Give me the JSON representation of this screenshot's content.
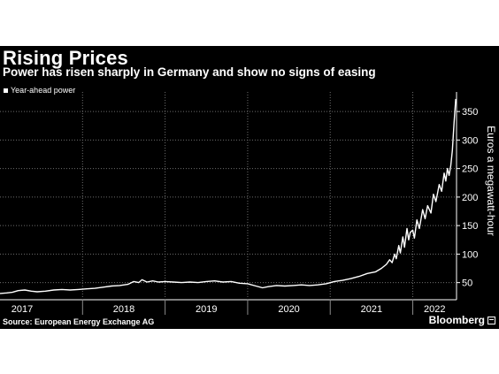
{
  "header": {
    "title": "Rising Prices",
    "subtitle": "Power has risen sharply in Germany and show no signs of easing"
  },
  "footer": {
    "source": "Source: European Energy Exchange AG",
    "brand": "Bloomberg"
  },
  "colors": {
    "background": "#000000",
    "line": "#ffffff",
    "grid": "#6e6e6e"
  },
  "chart_data": {
    "type": "line",
    "title": "Rising Prices",
    "subtitle": "Power has risen sharply in Germany and show no signs of easing",
    "xlabel": "",
    "ylabel": "Euros a megawatt-hour",
    "xlim": [
      2017.0,
      2022.53
    ],
    "ylim": [
      20,
      375
    ],
    "y_ticks": [
      50,
      100,
      150,
      200,
      250,
      300,
      350
    ],
    "x_tick_labels": [
      "2017",
      "2018",
      "2019",
      "2020",
      "2021",
      "2022"
    ],
    "x_ticks": [
      2017,
      2018,
      2019,
      2020,
      2021,
      2022
    ],
    "grid": "dotted-both",
    "legend_position": "top-left",
    "series": [
      {
        "name": "Year-ahead power",
        "points": [
          [
            2017.0,
            31
          ],
          [
            2017.08,
            32
          ],
          [
            2017.15,
            33
          ],
          [
            2017.22,
            36
          ],
          [
            2017.3,
            37
          ],
          [
            2017.38,
            35
          ],
          [
            2017.45,
            34
          ],
          [
            2017.55,
            35
          ],
          [
            2017.65,
            37
          ],
          [
            2017.75,
            38
          ],
          [
            2017.85,
            37
          ],
          [
            2017.95,
            38
          ],
          [
            2018.05,
            39
          ],
          [
            2018.15,
            40
          ],
          [
            2018.25,
            42
          ],
          [
            2018.35,
            44
          ],
          [
            2018.45,
            45
          ],
          [
            2018.55,
            47
          ],
          [
            2018.62,
            52
          ],
          [
            2018.68,
            50
          ],
          [
            2018.72,
            55
          ],
          [
            2018.78,
            51
          ],
          [
            2018.85,
            53
          ],
          [
            2018.92,
            51
          ],
          [
            2019.0,
            52
          ],
          [
            2019.1,
            51
          ],
          [
            2019.2,
            50
          ],
          [
            2019.3,
            51
          ],
          [
            2019.4,
            50
          ],
          [
            2019.5,
            52
          ],
          [
            2019.6,
            53
          ],
          [
            2019.7,
            51
          ],
          [
            2019.8,
            52
          ],
          [
            2019.9,
            49
          ],
          [
            2020.0,
            48
          ],
          [
            2020.1,
            44
          ],
          [
            2020.18,
            41
          ],
          [
            2020.25,
            43
          ],
          [
            2020.35,
            45
          ],
          [
            2020.45,
            44
          ],
          [
            2020.55,
            45
          ],
          [
            2020.65,
            46
          ],
          [
            2020.75,
            45
          ],
          [
            2020.85,
            46
          ],
          [
            2020.95,
            48
          ],
          [
            2021.05,
            52
          ],
          [
            2021.15,
            54
          ],
          [
            2021.25,
            57
          ],
          [
            2021.35,
            61
          ],
          [
            2021.45,
            66
          ],
          [
            2021.55,
            69
          ],
          [
            2021.62,
            75
          ],
          [
            2021.68,
            82
          ],
          [
            2021.72,
            90
          ],
          [
            2021.75,
            85
          ],
          [
            2021.78,
            100
          ],
          [
            2021.8,
            92
          ],
          [
            2021.83,
            115
          ],
          [
            2021.85,
            102
          ],
          [
            2021.88,
            130
          ],
          [
            2021.9,
            112
          ],
          [
            2021.93,
            145
          ],
          [
            2021.95,
            125
          ],
          [
            2021.97,
            138
          ],
          [
            2022.0,
            142
          ],
          [
            2022.02,
            128
          ],
          [
            2022.05,
            160
          ],
          [
            2022.08,
            145
          ],
          [
            2022.12,
            178
          ],
          [
            2022.15,
            162
          ],
          [
            2022.18,
            185
          ],
          [
            2022.22,
            172
          ],
          [
            2022.25,
            205
          ],
          [
            2022.28,
            192
          ],
          [
            2022.32,
            222
          ],
          [
            2022.35,
            210
          ],
          [
            2022.38,
            242
          ],
          [
            2022.4,
            228
          ],
          [
            2022.42,
            250
          ],
          [
            2022.44,
            238
          ],
          [
            2022.46,
            255
          ],
          [
            2022.48,
            282
          ],
          [
            2022.5,
            330
          ],
          [
            2022.52,
            372
          ]
        ]
      }
    ]
  }
}
